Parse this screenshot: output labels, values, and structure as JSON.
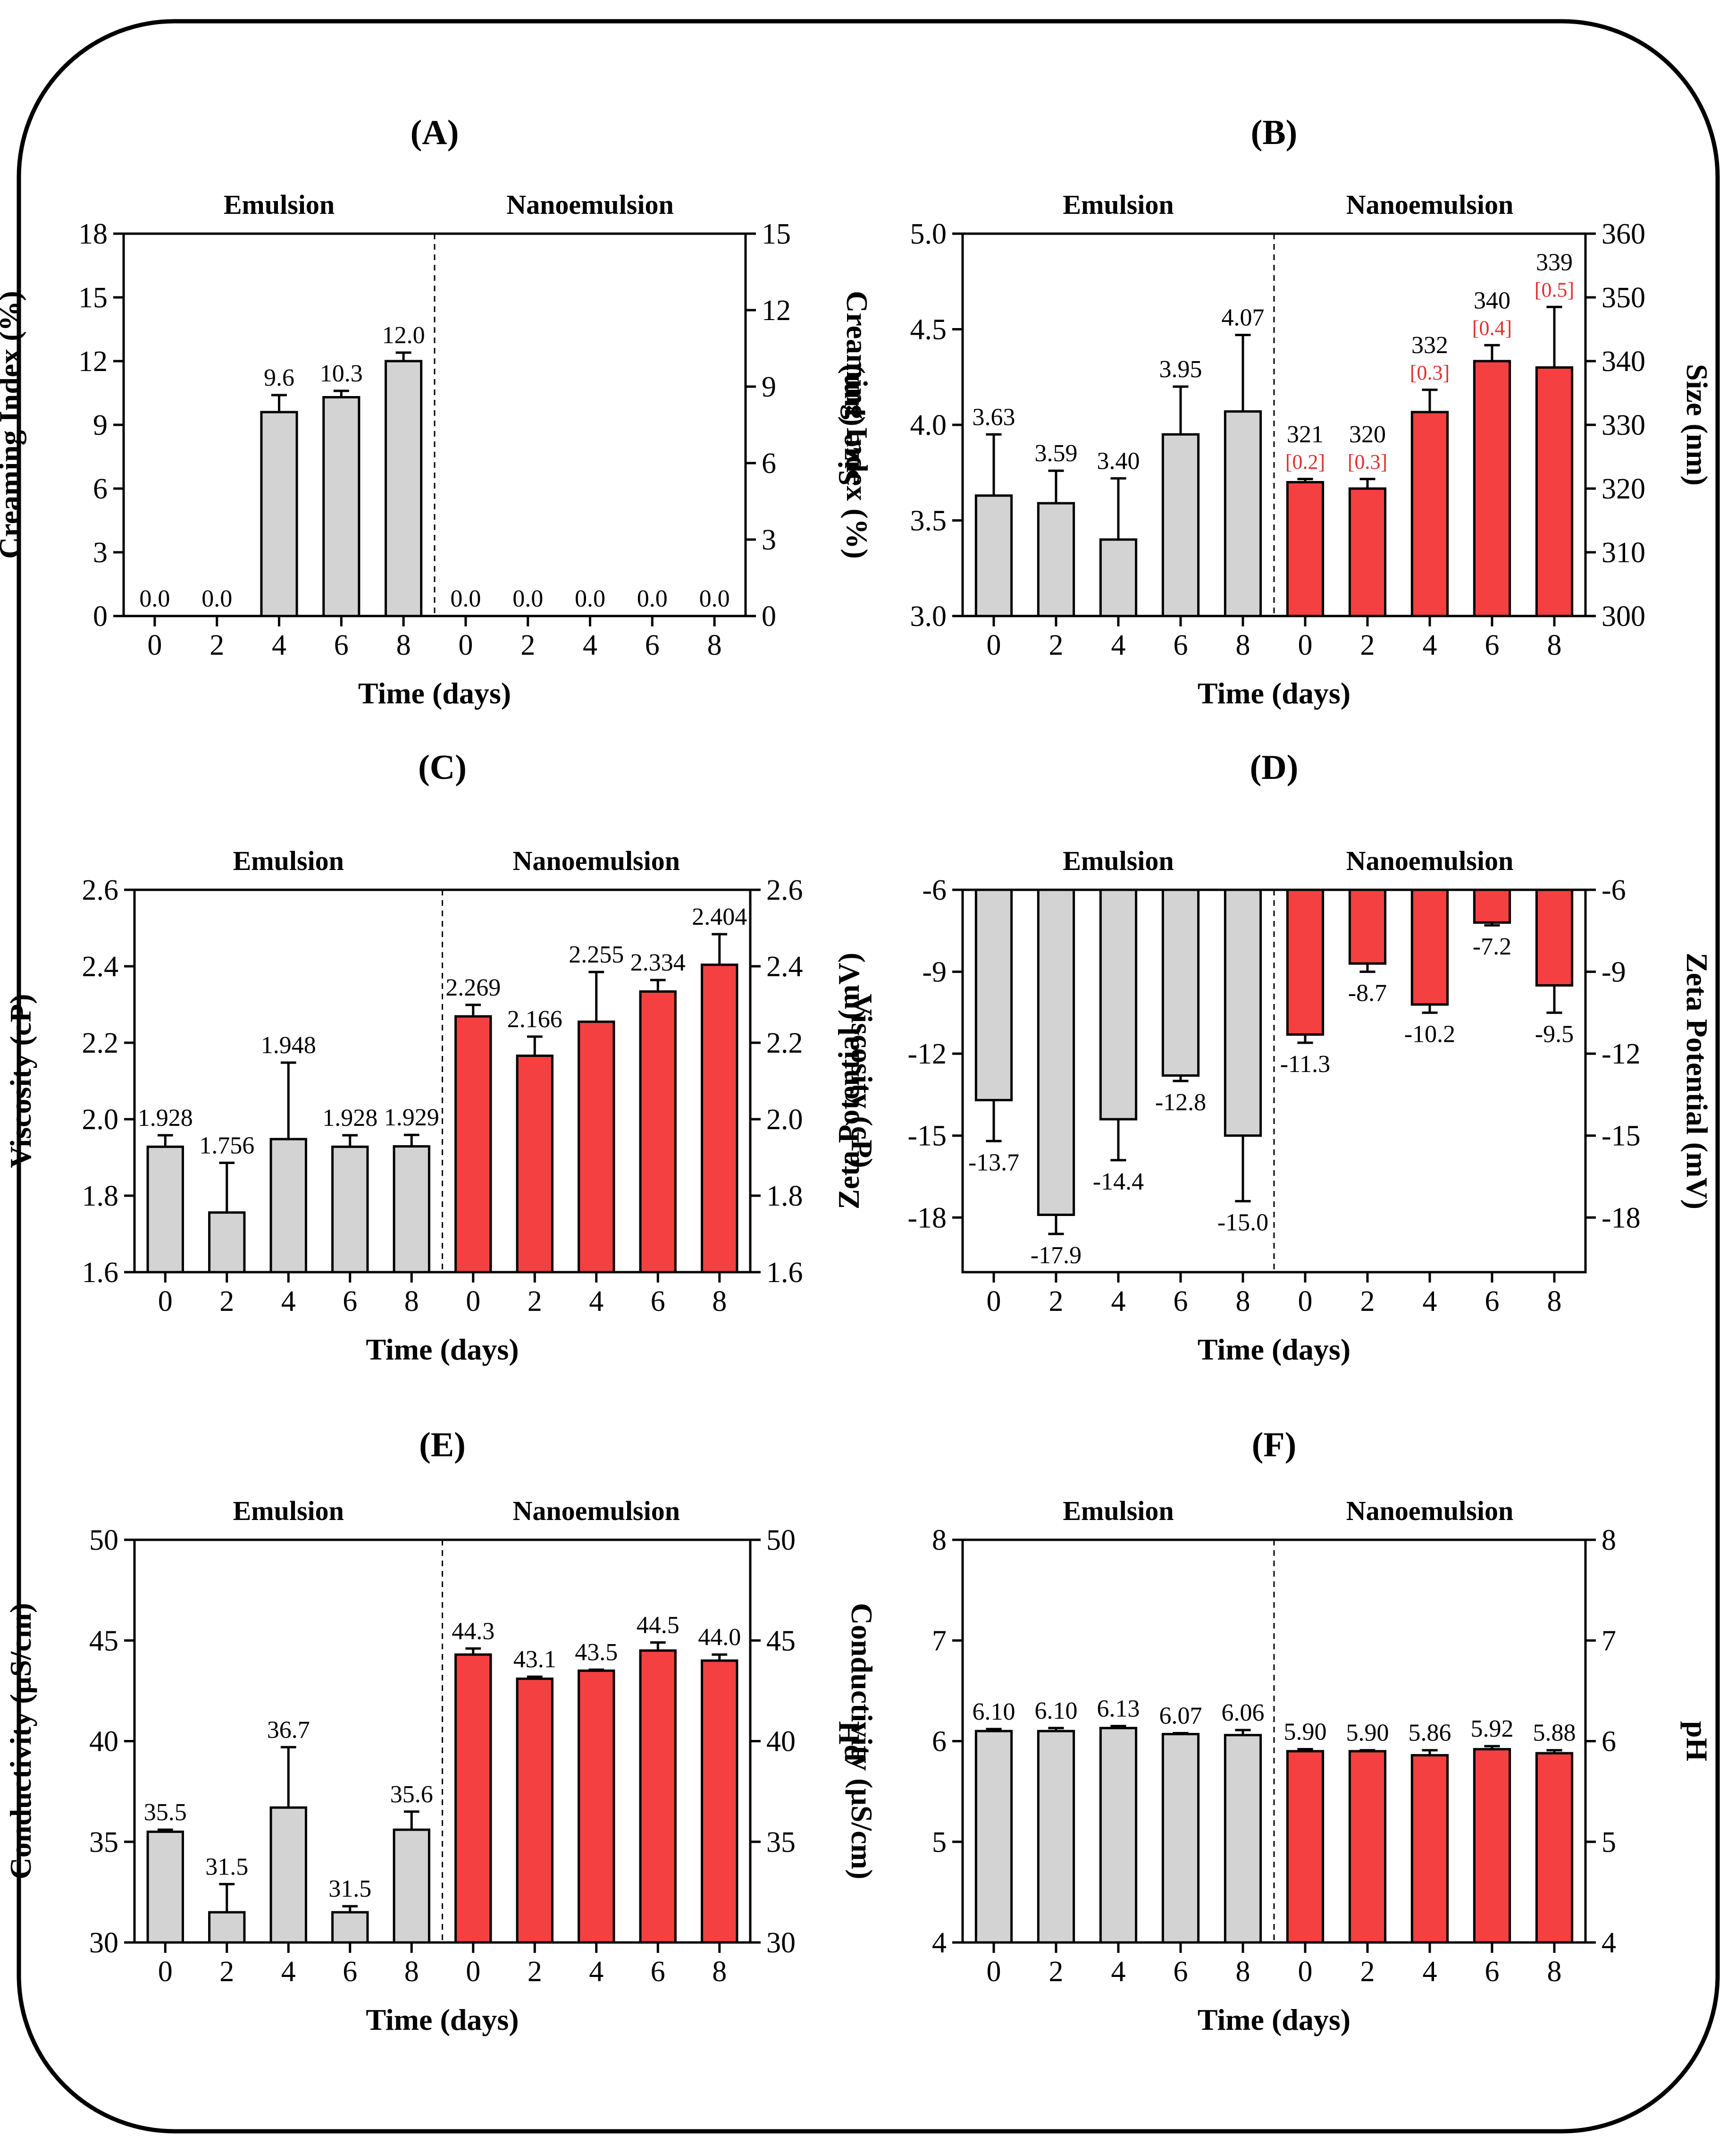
{
  "colors": {
    "emulsion_bar": "#d3d3d3",
    "nanoemulsion_bar": "#f44040",
    "annotation_red": "#e03030",
    "axis": "#000000"
  },
  "chart_data": [
    {
      "id": "A",
      "title": "(A)",
      "type": "bar",
      "groups": [
        "Emulsion",
        "Nanoemulsion"
      ],
      "xlabel": "Time (days)",
      "ylabel_left": "Creaming Index (%)",
      "ylabel_right": "Creaming Index (%)",
      "ylim_left": [
        0,
        18
      ],
      "yticks_left": [
        "0",
        "3",
        "6",
        "9",
        "12",
        "15",
        "18"
      ],
      "ylim_right": [
        0,
        15
      ],
      "yticks_right": [
        "0",
        "3",
        "6",
        "9",
        "12",
        "15"
      ],
      "series": [
        {
          "name": "Emulsion",
          "categories": [
            "0",
            "2",
            "4",
            "6",
            "8"
          ],
          "values": [
            0,
            0,
            9.6,
            10.3,
            12.0
          ],
          "errors": [
            0,
            0,
            0.8,
            0.3,
            0.4
          ],
          "labels": [
            "0.0",
            "0.0",
            "9.6",
            "10.3",
            "12.0"
          ]
        },
        {
          "name": "Nanoemulsion",
          "categories": [
            "0",
            "2",
            "4",
            "6",
            "8"
          ],
          "values": [
            0,
            0,
            0,
            0,
            0
          ],
          "errors": [
            0,
            0,
            0,
            0,
            0
          ],
          "labels": [
            "0.0",
            "0.0",
            "0.0",
            "0.0",
            "0.0"
          ]
        }
      ]
    },
    {
      "id": "B",
      "title": "(B)",
      "type": "bar",
      "groups": [
        "Emulsion",
        "Nanoemulsion"
      ],
      "xlabel": "Time (days)",
      "ylabel_left": "Size (μm)",
      "ylabel_right": "Size (nm)",
      "ylim_left": [
        3.0,
        5.0
      ],
      "yticks_left": [
        "3.0",
        "3.5",
        "4.0",
        "4.5",
        "5.0"
      ],
      "ylim_right": [
        300,
        360
      ],
      "yticks_right": [
        "300",
        "310",
        "320",
        "330",
        "340",
        "350",
        "360"
      ],
      "series": [
        {
          "name": "Emulsion",
          "axis": "left",
          "categories": [
            "0",
            "2",
            "4",
            "6",
            "8"
          ],
          "values": [
            3.63,
            3.59,
            3.4,
            3.95,
            4.07
          ],
          "errors": [
            0.32,
            0.17,
            0.32,
            0.25,
            0.4
          ],
          "labels": [
            "3.63",
            "3.59",
            "3.40",
            "3.95",
            "4.07"
          ]
        },
        {
          "name": "Nanoemulsion",
          "axis": "right",
          "categories": [
            "0",
            "2",
            "4",
            "6",
            "8"
          ],
          "values": [
            321,
            320,
            332,
            340,
            339
          ],
          "errors": [
            0.5,
            1.5,
            3.5,
            2.5,
            9.5
          ],
          "labels": [
            "321",
            "320",
            "332",
            "340",
            "339"
          ],
          "sublabels": [
            "[0.2]",
            "[0.3]",
            "[0.3]",
            "[0.4]",
            "[0.5]"
          ]
        }
      ]
    },
    {
      "id": "C",
      "title": "(C)",
      "type": "bar",
      "groups": [
        "Emulsion",
        "Nanoemulsion"
      ],
      "xlabel": "Time (days)",
      "ylabel_left": "Viscosity (cP)",
      "ylabel_right": "Viscosity (cP)",
      "ylim_left": [
        1.6,
        2.6
      ],
      "yticks_left": [
        "1.6",
        "1.8",
        "2.0",
        "2.2",
        "2.4",
        "2.6"
      ],
      "ylim_right": [
        1.6,
        2.6
      ],
      "yticks_right": [
        "1.6",
        "1.8",
        "2.0",
        "2.2",
        "2.4",
        "2.6"
      ],
      "series": [
        {
          "name": "Emulsion",
          "categories": [
            "0",
            "2",
            "4",
            "6",
            "8"
          ],
          "values": [
            1.928,
            1.756,
            1.948,
            1.928,
            1.929
          ],
          "errors": [
            0.03,
            0.13,
            0.2,
            0.03,
            0.03
          ],
          "labels": [
            "1.928",
            "1.756",
            "1.948",
            "1.928",
            "1.929"
          ]
        },
        {
          "name": "Nanoemulsion",
          "categories": [
            "0",
            "2",
            "4",
            "6",
            "8"
          ],
          "values": [
            2.269,
            2.166,
            2.255,
            2.334,
            2.404
          ],
          "errors": [
            0.03,
            0.05,
            0.13,
            0.03,
            0.08
          ],
          "labels": [
            "2.269",
            "2.166",
            "2.255",
            "2.334",
            "2.404"
          ]
        }
      ]
    },
    {
      "id": "D",
      "title": "(D)",
      "type": "bar",
      "direction": "down",
      "groups": [
        "Emulsion",
        "Nanoemulsion"
      ],
      "xlabel": "Time (days)",
      "ylabel_left": "Zeta Potential (mV)",
      "ylabel_right": "Zeta Potential (mV)",
      "ylim_left": [
        -20,
        -6
      ],
      "yticks_left": [
        "-6",
        "-9",
        "-12",
        "-15",
        "-18"
      ],
      "ylim_right": [
        -20,
        -6
      ],
      "yticks_right": [
        "-6",
        "-9",
        "-12",
        "-15",
        "-18"
      ],
      "series": [
        {
          "name": "Emulsion",
          "categories": [
            "0",
            "2",
            "4",
            "6",
            "8"
          ],
          "values": [
            -13.7,
            -17.9,
            -14.4,
            -12.8,
            -15.0
          ],
          "errors": [
            1.5,
            0.7,
            1.5,
            0.2,
            2.4
          ],
          "labels": [
            "-13.7",
            "-17.9",
            "-14.4",
            "-12.8",
            "-15.0"
          ]
        },
        {
          "name": "Nanoemulsion",
          "categories": [
            "0",
            "2",
            "4",
            "6",
            "8"
          ],
          "values": [
            -11.3,
            -8.7,
            -10.2,
            -7.2,
            -9.5
          ],
          "errors": [
            0.3,
            0.3,
            0.3,
            0.1,
            1.0
          ],
          "labels": [
            "-11.3",
            "-8.7",
            "-10.2",
            "-7.2",
            "-9.5"
          ]
        }
      ]
    },
    {
      "id": "E",
      "title": "(E)",
      "type": "bar",
      "groups": [
        "Emulsion",
        "Nanoemulsion"
      ],
      "xlabel": "Time (days)",
      "ylabel_left": "Conductivity (μS/cm)",
      "ylabel_right": "Conductivity (μS/cm)",
      "ylim_left": [
        30,
        50
      ],
      "yticks_left": [
        "30",
        "35",
        "40",
        "45",
        "50"
      ],
      "ylim_right": [
        30,
        50
      ],
      "yticks_right": [
        "30",
        "35",
        "40",
        "45",
        "50"
      ],
      "series": [
        {
          "name": "Emulsion",
          "categories": [
            "0",
            "2",
            "4",
            "6",
            "8"
          ],
          "values": [
            35.5,
            31.5,
            36.7,
            31.5,
            35.6
          ],
          "errors": [
            0.1,
            1.4,
            3.0,
            0.3,
            0.9
          ],
          "labels": [
            "35.5",
            "31.5",
            "36.7",
            "31.5",
            "35.6"
          ]
        },
        {
          "name": "Nanoemulsion",
          "categories": [
            "0",
            "2",
            "4",
            "6",
            "8"
          ],
          "values": [
            44.3,
            43.1,
            43.5,
            44.5,
            44.0
          ],
          "errors": [
            0.3,
            0.1,
            0.05,
            0.4,
            0.3
          ],
          "labels": [
            "44.3",
            "43.1",
            "43.5",
            "44.5",
            "44.0"
          ]
        }
      ]
    },
    {
      "id": "F",
      "title": "(F)",
      "type": "bar",
      "groups": [
        "Emulsion",
        "Nanoemulsion"
      ],
      "xlabel": "Time (days)",
      "ylabel_left": "pH",
      "ylabel_right": "pH",
      "ylim_left": [
        4,
        8
      ],
      "yticks_left": [
        "4",
        "5",
        "6",
        "7",
        "8"
      ],
      "ylim_right": [
        4,
        8
      ],
      "yticks_right": [
        "4",
        "5",
        "6",
        "7",
        "8"
      ],
      "series": [
        {
          "name": "Emulsion",
          "categories": [
            "0",
            "2",
            "4",
            "6",
            "8"
          ],
          "values": [
            6.1,
            6.1,
            6.13,
            6.07,
            6.06
          ],
          "errors": [
            0.02,
            0.03,
            0.02,
            0.01,
            0.05
          ],
          "labels": [
            "6.10",
            "6.10",
            "6.13",
            "6.07",
            "6.06"
          ]
        },
        {
          "name": "Nanoemulsion",
          "categories": [
            "0",
            "2",
            "4",
            "6",
            "8"
          ],
          "values": [
            5.9,
            5.9,
            5.86,
            5.92,
            5.88
          ],
          "errors": [
            0.02,
            0.01,
            0.05,
            0.03,
            0.03
          ],
          "labels": [
            "5.90",
            "5.90",
            "5.86",
            "5.92",
            "5.88"
          ]
        }
      ]
    }
  ]
}
